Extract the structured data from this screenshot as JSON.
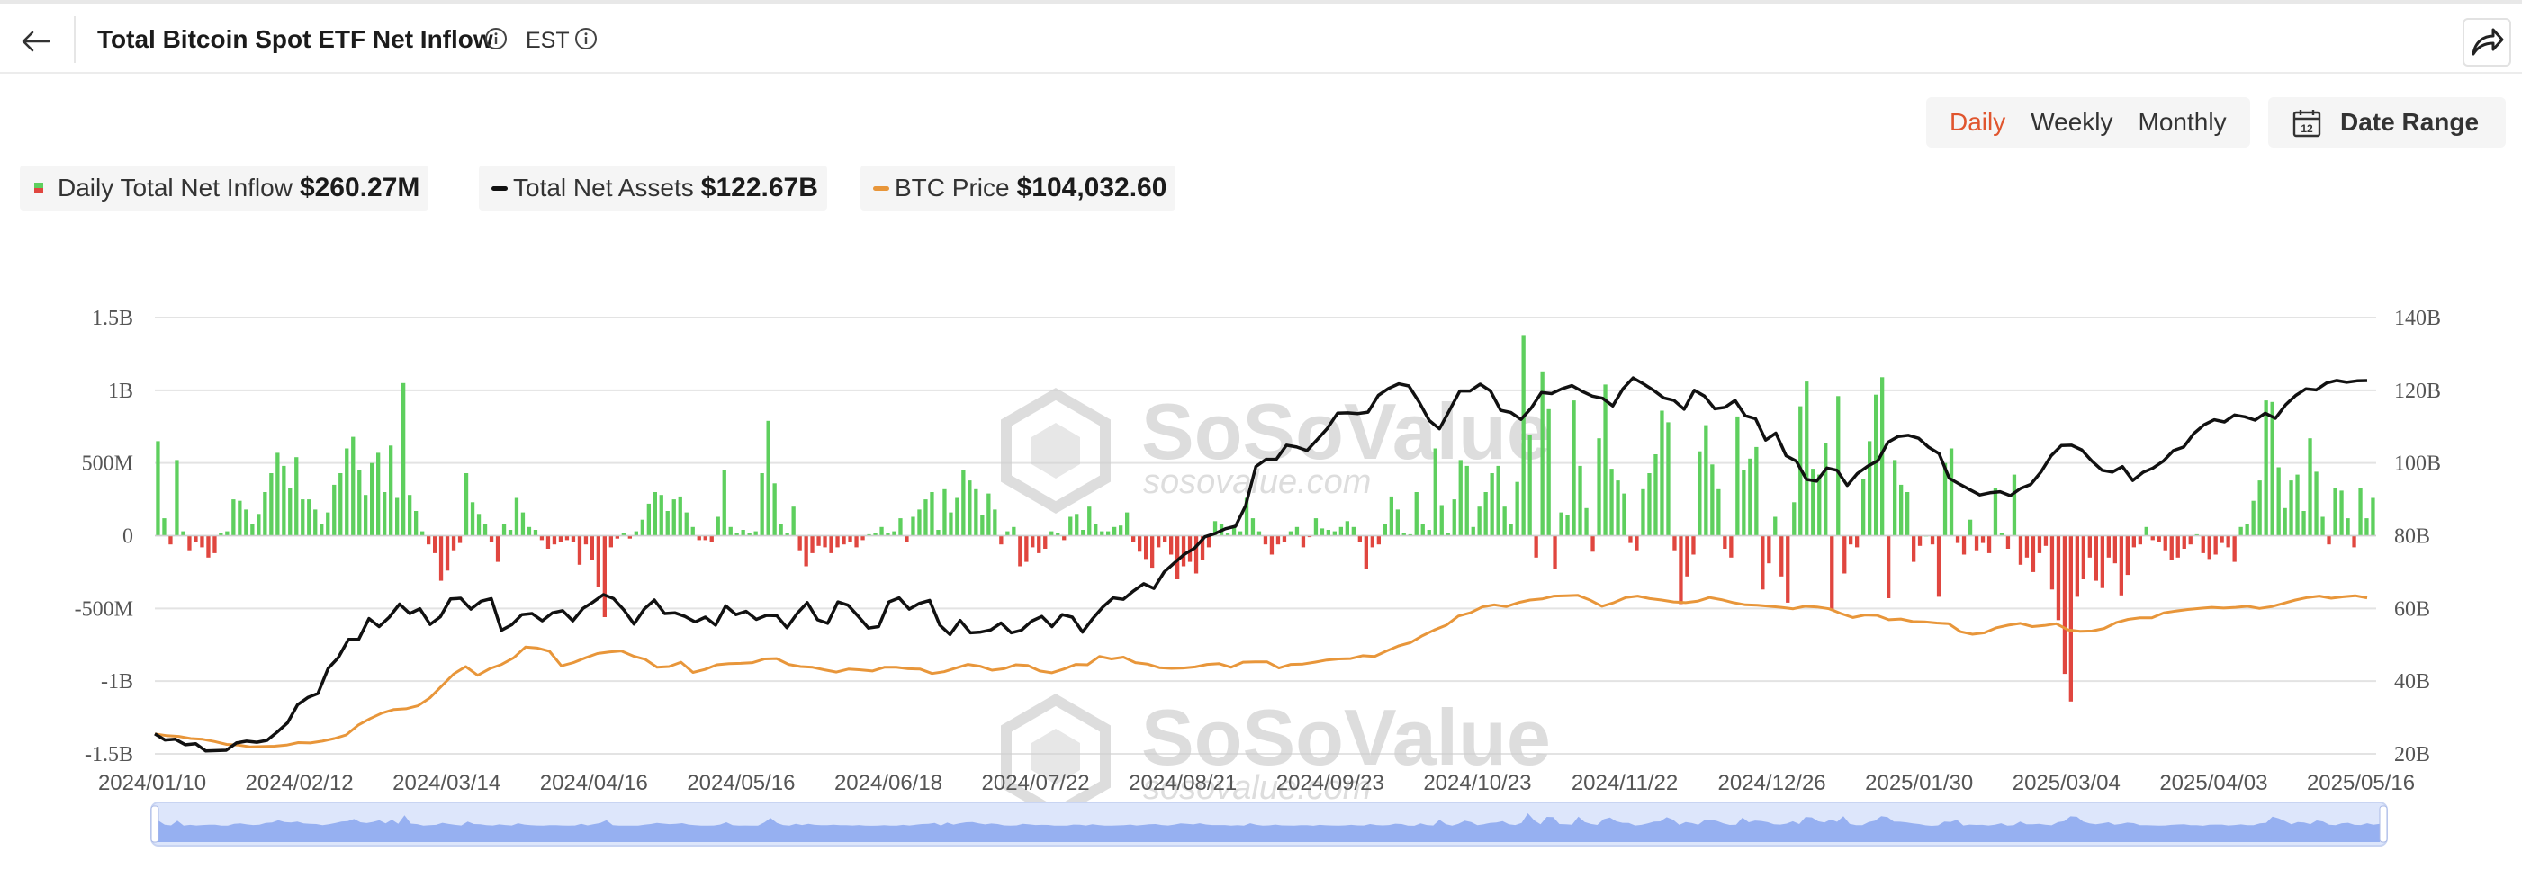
{
  "header": {
    "title": "Total Bitcoin Spot ETF Net Inflow",
    "timezone": "EST"
  },
  "period_tabs": [
    {
      "label": "Daily",
      "active": true
    },
    {
      "label": "Weekly",
      "active": false
    },
    {
      "label": "Monthly",
      "active": false
    }
  ],
  "date_range": {
    "label": "Date Range",
    "icon": "calendar-icon",
    "icon_text": "12"
  },
  "legend": [
    {
      "name": "Daily Total Net Inflow",
      "value": "$260.27M",
      "color_pos": "#5ecf5e",
      "color_neg": "#e0463f"
    },
    {
      "name": "Total Net Assets",
      "value": "$122.67B",
      "color": "#111111"
    },
    {
      "name": "BTC Price",
      "value": "$104,032.60",
      "color": "#e8963a"
    }
  ],
  "watermark": {
    "brand": "SoSoValue",
    "site": "sosovalue.com"
  },
  "chart_data": {
    "type": "bar",
    "left_axis": {
      "ticks": [
        "1.5B",
        "1B",
        "500M",
        "0",
        "-500M",
        "-1B",
        "-1.5B"
      ],
      "range": [
        -1500,
        1500
      ],
      "unit": "M"
    },
    "right_axis": {
      "ticks": [
        "140B",
        "120B",
        "100B",
        "80B",
        "60B",
        "40B",
        "20B"
      ],
      "range": [
        20,
        140
      ],
      "unit": "B"
    },
    "x_ticks": [
      "2024/01/10",
      "2024/02/12",
      "2024/03/14",
      "2024/04/16",
      "2024/05/16",
      "2024/06/18",
      "2024/07/22",
      "2024/08/21",
      "2024/09/23",
      "2024/10/23",
      "2024/11/22",
      "2024/12/26",
      "2025/01/30",
      "2025/03/04",
      "2025/04/03",
      "2025/05/16"
    ],
    "grid": true,
    "series": [
      {
        "name": "Daily Total Net Inflow",
        "type": "bar",
        "axis": "left",
        "unit": "M",
        "values": [
          650,
          120,
          -60,
          520,
          30,
          -100,
          -40,
          -80,
          -150,
          -120,
          20,
          30,
          250,
          240,
          180,
          80,
          150,
          300,
          430,
          570,
          480,
          330,
          540,
          250,
          250,
          180,
          80,
          160,
          350,
          430,
          600,
          680,
          450,
          280,
          500,
          570,
          300,
          620,
          260,
          1050,
          280,
          170,
          30,
          -60,
          -120,
          -310,
          -240,
          -100,
          -50,
          430,
          230,
          150,
          80,
          -40,
          -180,
          80,
          40,
          260,
          160,
          60,
          40,
          -30,
          -90,
          -60,
          -40,
          -30,
          -40,
          -200,
          -60,
          -170,
          -350,
          -560,
          -80,
          -20,
          20,
          -20,
          30,
          110,
          220,
          300,
          280,
          170,
          250,
          270,
          160,
          60,
          -30,
          -30,
          -40,
          130,
          450,
          60,
          20,
          40,
          20,
          30,
          430,
          790,
          360,
          80,
          20,
          200,
          -100,
          -210,
          -120,
          -70,
          -80,
          -120,
          -80,
          -60,
          -40,
          -80,
          -30,
          10,
          20,
          60,
          20,
          30,
          120,
          -40,
          130,
          180,
          250,
          300,
          40,
          320,
          160,
          260,
          450,
          380,
          320,
          140,
          290,
          180,
          -60,
          30,
          60,
          -210,
          -180,
          -80,
          -120,
          -90,
          30,
          20,
          -30,
          130,
          150,
          40,
          200,
          80,
          30,
          30,
          60,
          70,
          160,
          -40,
          -110,
          -160,
          -220,
          -80,
          -40,
          -130,
          -300,
          -210,
          -180,
          -260,
          -170,
          -80,
          100,
          80,
          20,
          60,
          30,
          260,
          120,
          30,
          -60,
          -130,
          -60,
          -40,
          30,
          60,
          -80,
          -10,
          120,
          50,
          40,
          30,
          60,
          100,
          60,
          -40,
          -230,
          -80,
          -60,
          80,
          270,
          180,
          20,
          10,
          300,
          80,
          40,
          600,
          210,
          20,
          250,
          520,
          480,
          60,
          200,
          300,
          430,
          480,
          200,
          80,
          370,
          1380,
          690,
          -150,
          1130,
          870,
          -230,
          160,
          140,
          930,
          480,
          190,
          -110,
          670,
          1040,
          460,
          380,
          290,
          -50,
          -100,
          320,
          430,
          560,
          860,
          780,
          -100,
          -470,
          -280,
          -130,
          580,
          760,
          490,
          320,
          -90,
          -150,
          820,
          450,
          530,
          610,
          -370,
          -190,
          130,
          -280,
          -460,
          230,
          890,
          1060,
          460,
          420,
          640,
          -510,
          960,
          -260,
          -60,
          -80,
          390,
          650,
          970,
          1090,
          -430,
          520,
          350,
          300,
          -180,
          -70,
          0,
          -60,
          -420,
          500,
          600,
          -50,
          -130,
          110,
          -100,
          -50,
          -120,
          330,
          20,
          -90,
          420,
          -200,
          -150,
          -250,
          -120,
          -70,
          -370,
          -580,
          -950,
          -1140,
          -420,
          -300,
          -150,
          -310,
          -360,
          -150,
          -190,
          -410,
          -270,
          -80,
          -60,
          60,
          -30,
          -40,
          -100,
          -170,
          -150,
          -90,
          -60,
          10,
          -120,
          -160,
          -130,
          -50,
          -80,
          -180,
          60,
          80,
          240,
          380,
          930,
          920,
          470,
          190,
          380,
          420,
          170,
          670,
          440,
          130,
          -60,
          330,
          310,
          120,
          -80,
          330,
          120,
          260
        ]
      },
      {
        "name": "Total Net Assets",
        "type": "line",
        "axis": "right",
        "unit": "B",
        "values": [
          25.5,
          23.8,
          24.0,
          22.5,
          22.8,
          20.8,
          20.9,
          21.0,
          23.0,
          23.5,
          23.2,
          23.7,
          26.0,
          28.5,
          33.5,
          35.5,
          36.6,
          43.5,
          46.5,
          51.5,
          51.5,
          57.2,
          55.0,
          57.6,
          61.2,
          58.6,
          59.9,
          55.6,
          57.7,
          62.6,
          62.8,
          59.8,
          62.0,
          62.7,
          54.0,
          55.5,
          58.3,
          58.6,
          56.6,
          58.8,
          59.4,
          56.6,
          60.0,
          61.8,
          63.8,
          62.7,
          59.6,
          55.7,
          59.8,
          62.3,
          58.6,
          58.8,
          57.8,
          56.3,
          57.6,
          55.4,
          60.7,
          58.3,
          59.2,
          57.0,
          58.1,
          58.0,
          54.7,
          58.6,
          61.6,
          56.9,
          55.9,
          61.8,
          60.9,
          57.8,
          54.6,
          55.0,
          61.8,
          62.9,
          59.8,
          61.4,
          62.2,
          55.4,
          52.8,
          56.7,
          53.3,
          53.5,
          54.1,
          56.0,
          53.3,
          54.0,
          56.5,
          57.8,
          55.0,
          58.3,
          57.6,
          53.5,
          57.2,
          60.4,
          62.9,
          62.5,
          64.8,
          66.8,
          65.5,
          70.0,
          72.5,
          74.9,
          76.6,
          79.7,
          80.6,
          81.9,
          82.6,
          88.3,
          99.0,
          101.0,
          101.0,
          104.9,
          104.4,
          103.4,
          106.4,
          109.5,
          113.7,
          113.8,
          113.6,
          114.0,
          118.6,
          120.5,
          121.8,
          121.2,
          116.8,
          111.7,
          109.4,
          114.6,
          119.8,
          119.8,
          121.7,
          119.8,
          114.5,
          113.9,
          112.0,
          115.1,
          119.4,
          119.1,
          120.4,
          121.3,
          119.7,
          118.4,
          117.8,
          115.7,
          120.4,
          123.4,
          121.8,
          120.0,
          117.9,
          117.2,
          114.8,
          120.0,
          118.4,
          114.9,
          115.3,
          117.2,
          113.0,
          112.2,
          106.3,
          108.2,
          102.0,
          100.5,
          95.5,
          95.0,
          98.6,
          98.0,
          93.8,
          97.1,
          99.1,
          100.6,
          105.7,
          107.3,
          107.6,
          106.8,
          104.3,
          102.6,
          95.8,
          94.2,
          92.7,
          91.2,
          91.8,
          92.1,
          91.0,
          93.0,
          94.1,
          97.5,
          102.0,
          104.8,
          104.9,
          103.6,
          100.5,
          98.0,
          97.5,
          99.0,
          95.2,
          97.4,
          98.6,
          100.5,
          103.4,
          104.4,
          108.1,
          110.5,
          111.9,
          111.3,
          113.2,
          112.7,
          111.8,
          113.7,
          112.3,
          116.0,
          118.6,
          120.4,
          120.1,
          122.0,
          122.7,
          122.2,
          122.6,
          122.67
        ]
      },
      {
        "name": "BTC Price",
        "type": "line",
        "axis": "right",
        "unit": "B",
        "values": [
          25.5,
          25.0,
          24.8,
          24.2,
          24.0,
          23.4,
          22.6,
          22.4,
          21.9,
          22.0,
          22.1,
          22.4,
          23.1,
          23.0,
          23.5,
          24.2,
          25.2,
          27.9,
          29.7,
          31.2,
          32.2,
          32.4,
          33.2,
          35.4,
          38.7,
          42.0,
          44.0,
          41.6,
          43.4,
          44.6,
          46.4,
          49.4,
          49.1,
          48.2,
          44.2,
          45.1,
          46.4,
          47.6,
          48.0,
          48.3,
          46.9,
          46.0,
          43.8,
          44.0,
          45.2,
          42.4,
          43.2,
          44.5,
          44.8,
          44.9,
          45.1,
          46.1,
          46.2,
          44.6,
          44.0,
          43.8,
          43.1,
          42.5,
          43.3,
          43.1,
          42.8,
          43.8,
          43.8,
          43.4,
          43.3,
          42.1,
          42.6,
          43.6,
          44.6,
          44.1,
          43.0,
          43.4,
          44.5,
          44.3,
          42.8,
          42.3,
          43.3,
          44.6,
          44.5,
          46.8,
          46.1,
          46.6,
          45.1,
          44.7,
          43.7,
          43.5,
          43.6,
          43.9,
          44.6,
          44.8,
          43.8,
          45.2,
          45.3,
          45.3,
          43.6,
          44.6,
          44.7,
          45.2,
          45.8,
          46.1,
          46.2,
          47.0,
          46.8,
          48.3,
          49.7,
          50.6,
          52.5,
          54.1,
          55.4,
          57.9,
          58.8,
          60.4,
          61.0,
          60.5,
          61.6,
          62.3,
          62.6,
          63.4,
          63.5,
          63.6,
          62.3,
          60.6,
          61.6,
          63.0,
          63.4,
          62.7,
          62.3,
          61.8,
          61.6,
          62.0,
          63.0,
          62.4,
          61.6,
          61.0,
          60.9,
          60.6,
          60.3,
          59.9,
          60.6,
          60.4,
          59.9,
          58.6,
          57.5,
          58.2,
          58.1,
          56.9,
          57.1,
          56.4,
          56.3,
          56.0,
          55.8,
          53.6,
          52.9,
          53.3,
          54.7,
          55.4,
          55.9,
          55.0,
          55.3,
          55.8,
          54.1,
          53.7,
          53.8,
          54.5,
          56.1,
          57.0,
          57.4,
          57.4,
          58.8,
          59.3,
          59.7,
          60.0,
          60.3,
          60.1,
          60.3,
          60.6,
          60.0,
          60.5,
          61.4,
          62.3,
          63.0,
          63.4,
          62.8,
          63.2,
          63.5,
          62.9
        ]
      }
    ]
  }
}
